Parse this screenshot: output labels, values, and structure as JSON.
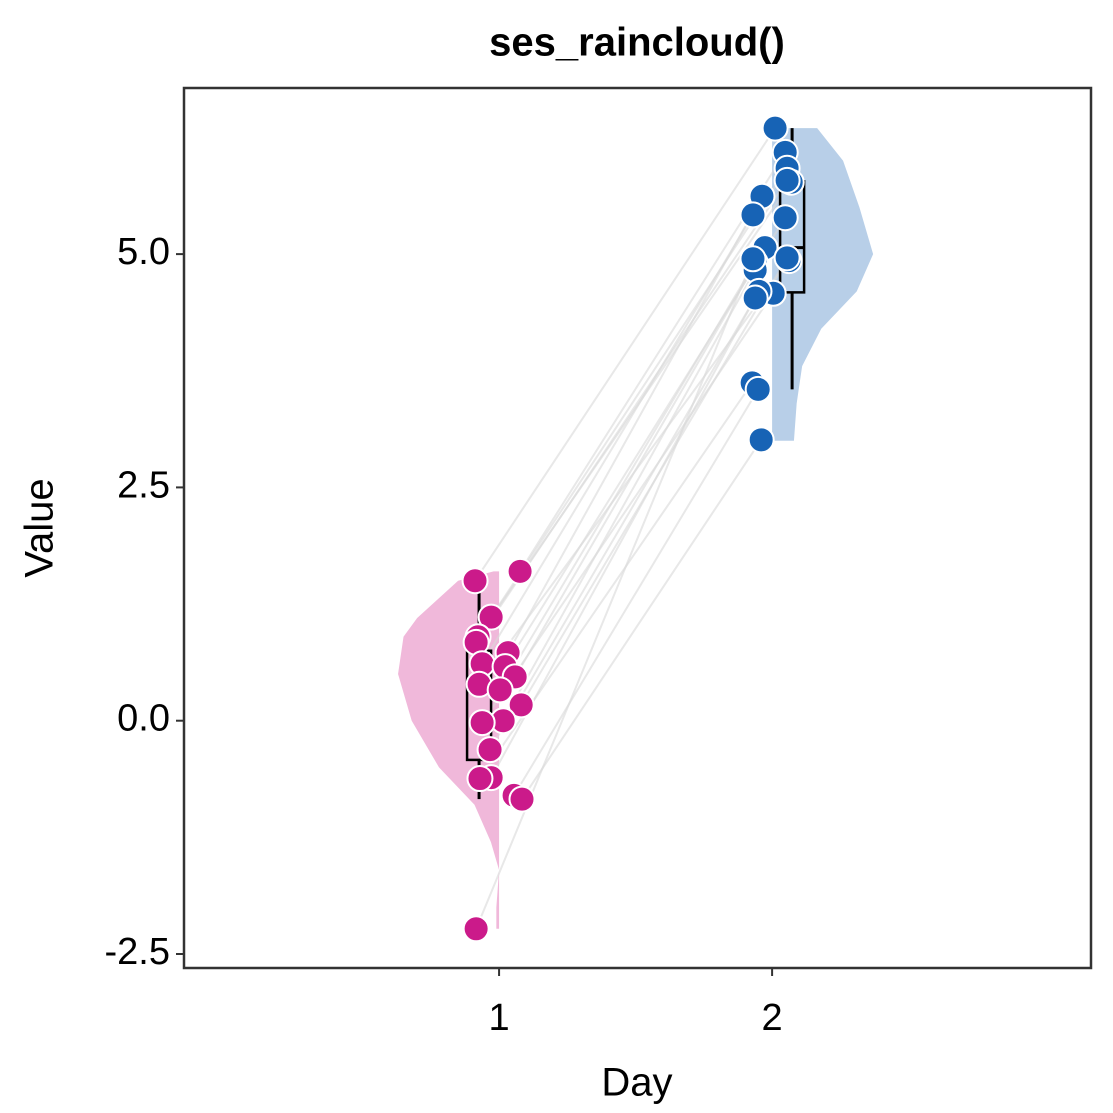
{
  "chart_data": {
    "type": "raincloud",
    "title": "ses_raincloud()",
    "x_label": "Day",
    "y_label": "Value",
    "xlim": [
      -0.154,
      3.168
    ],
    "xticks": [
      1,
      2
    ],
    "ylim": [
      -2.65,
      6.78
    ],
    "yticks": [
      {
        "value": -2.5,
        "label": "-2.5"
      },
      {
        "value": 0,
        "label": "0.0"
      },
      {
        "value": 2.5,
        "label": "2.5"
      },
      {
        "value": 5,
        "label": "5.0"
      }
    ],
    "grid": false,
    "connect_pairs": true,
    "line_color": "#d9d9d9",
    "series": [
      {
        "color": "#cb1a8a",
        "density_color": "#f0b8da",
        "side": "left",
        "center": 1,
        "x": [
          0.912,
          1.077,
          0.971,
          0.923,
          0.916,
          1.033,
          0.938,
          1.022,
          1.059,
          0.927,
          1.004,
          1.081,
          1.015,
          0.938,
          0.967,
          0.971,
          0.93,
          1.055,
          1.084,
          0.916
        ],
        "values": [
          1.5,
          1.6,
          1.11,
          0.9,
          0.84,
          0.73,
          0.61,
          0.58,
          0.47,
          0.39,
          0.33,
          0.17,
          0.0,
          -0.02,
          -0.31,
          -0.61,
          -0.62,
          -0.8,
          -0.84,
          -2.23
        ],
        "box": {
          "whisker_low": -0.84,
          "q1": -0.42,
          "median": 0.38,
          "q3": 0.75,
          "whisker_high": 1.5
        },
        "density": {
          "y": [
            1.6,
            1.5,
            1.1,
            0.9,
            0.5,
            0.0,
            -0.5,
            -0.9,
            -1.3,
            -1.6,
            -2.0,
            -2.23
          ],
          "width": [
            0.02,
            0.15,
            0.3,
            0.35,
            0.37,
            0.32,
            0.22,
            0.09,
            0.03,
            0.0,
            0.01,
            0.01
          ]
        }
      },
      {
        "color": "#1763b5",
        "density_color": "#b8cfe8",
        "side": "right",
        "center": 2,
        "x": [
          2.011,
          2.048,
          2.055,
          2.07,
          2.055,
          1.963,
          1.93,
          2.048,
          1.974,
          2.062,
          1.938,
          2.055,
          1.938,
          2.004,
          1.952,
          1.938,
          1.927,
          1.949,
          1.96,
          1.93
        ],
        "values": [
          6.35,
          6.09,
          5.92,
          5.77,
          5.79,
          5.62,
          5.42,
          5.39,
          5.07,
          4.93,
          4.91,
          4.96,
          4.83,
          4.58,
          4.6,
          4.53,
          3.62,
          3.55,
          3.01,
          4.95
        ],
        "box": {
          "whisker_low": 3.55,
          "q1": 4.59,
          "median": 5.07,
          "q3": 5.78,
          "whisker_high": 6.35
        },
        "density": {
          "y": [
            6.35,
            6.0,
            5.5,
            5.0,
            4.6,
            4.2,
            3.8,
            3.4,
            3.0
          ],
          "width": [
            0.165,
            0.26,
            0.32,
            0.37,
            0.31,
            0.18,
            0.11,
            0.09,
            0.08
          ]
        }
      }
    ]
  }
}
